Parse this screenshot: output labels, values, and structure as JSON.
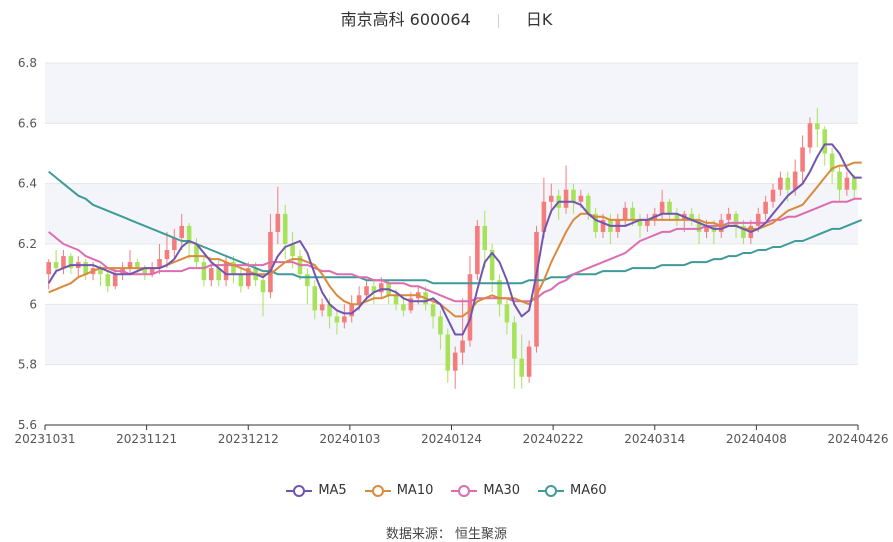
{
  "header": {
    "title": "南京高科 600064",
    "period": "日K"
  },
  "source": "数据来源： 恒生聚源",
  "colors": {
    "up": "#f47c7c",
    "down": "#a6e35b",
    "ma5": "#7155b0",
    "ma10": "#d98a3d",
    "ma30": "#dd6cb0",
    "ma60": "#3f9a9a",
    "grid": "#e6e6e6",
    "band": "#f4f5fa"
  },
  "chart_data": {
    "type": "candlestick",
    "title": "南京高科 600064 日K",
    "ylim": [
      5.6,
      6.8
    ],
    "yticks": [
      "6.8",
      "6.6",
      "6.4",
      "6.2",
      "6",
      "5.8",
      "5.6"
    ],
    "xticks": [
      "20231031",
      "20231121",
      "20231212",
      "20240103",
      "20240124",
      "20240222",
      "20240314",
      "20240408",
      "20240426"
    ],
    "legend": [
      {
        "name": "MA5",
        "color": "#7155b0"
      },
      {
        "name": "MA10",
        "color": "#d98a3d"
      },
      {
        "name": "MA30",
        "color": "#dd6cb0"
      },
      {
        "name": "MA60",
        "color": "#3f9a9a"
      }
    ],
    "candles": [
      [
        6.1,
        6.14,
        6.05,
        6.15
      ],
      [
        6.14,
        6.12,
        6.1,
        6.18
      ],
      [
        6.12,
        6.16,
        6.1,
        6.18
      ],
      [
        6.16,
        6.12,
        6.1,
        6.17
      ],
      [
        6.12,
        6.14,
        6.09,
        6.16
      ],
      [
        6.14,
        6.1,
        6.08,
        6.15
      ],
      [
        6.1,
        6.12,
        6.08,
        6.14
      ],
      [
        6.12,
        6.1,
        6.06,
        6.13
      ],
      [
        6.1,
        6.06,
        6.04,
        6.11
      ],
      [
        6.06,
        6.1,
        6.05,
        6.12
      ],
      [
        6.1,
        6.12,
        6.08,
        6.14
      ],
      [
        6.12,
        6.14,
        6.1,
        6.18
      ],
      [
        6.14,
        6.12,
        6.1,
        6.15
      ],
      [
        6.12,
        6.1,
        6.08,
        6.13
      ],
      [
        6.1,
        6.12,
        6.09,
        6.14
      ],
      [
        6.12,
        6.15,
        6.1,
        6.2
      ],
      [
        6.15,
        6.18,
        6.12,
        6.24
      ],
      [
        6.18,
        6.22,
        6.15,
        6.25
      ],
      [
        6.22,
        6.26,
        6.18,
        6.3
      ],
      [
        6.26,
        6.2,
        6.15,
        6.27
      ],
      [
        6.2,
        6.14,
        6.12,
        6.22
      ],
      [
        6.14,
        6.08,
        6.06,
        6.16
      ],
      [
        6.08,
        6.12,
        6.06,
        6.14
      ],
      [
        6.12,
        6.08,
        6.06,
        6.15
      ],
      [
        6.08,
        6.14,
        6.06,
        6.16
      ],
      [
        6.14,
        6.1,
        6.07,
        6.16
      ],
      [
        6.1,
        6.06,
        6.04,
        6.12
      ],
      [
        6.06,
        6.12,
        6.05,
        6.14
      ],
      [
        6.12,
        6.08,
        6.06,
        6.14
      ],
      [
        6.08,
        6.04,
        5.96,
        6.1
      ],
      [
        6.04,
        6.24,
        6.02,
        6.3
      ],
      [
        6.24,
        6.3,
        6.2,
        6.39
      ],
      [
        6.3,
        6.2,
        6.15,
        6.33
      ],
      [
        6.2,
        6.16,
        6.12,
        6.24
      ],
      [
        6.16,
        6.1,
        6.08,
        6.18
      ],
      [
        6.1,
        6.06,
        6.0,
        6.12
      ],
      [
        6.06,
        5.98,
        5.95,
        6.08
      ],
      [
        5.98,
        6.0,
        5.96,
        6.02
      ],
      [
        6.0,
        5.96,
        5.92,
        6.02
      ],
      [
        5.96,
        5.94,
        5.9,
        5.98
      ],
      [
        5.94,
        5.96,
        5.92,
        6.0
      ],
      [
        5.96,
        6.0,
        5.94,
        6.03
      ],
      [
        6.0,
        6.03,
        5.98,
        6.06
      ],
      [
        6.03,
        6.06,
        6.01,
        6.08
      ],
      [
        6.06,
        6.04,
        6.0,
        6.08
      ],
      [
        6.04,
        6.07,
        6.02,
        6.09
      ],
      [
        6.07,
        6.03,
        6.0,
        6.08
      ],
      [
        6.03,
        6.0,
        5.98,
        6.05
      ],
      [
        6.0,
        5.98,
        5.96,
        6.02
      ],
      [
        5.98,
        6.02,
        5.97,
        6.04
      ],
      [
        6.02,
        6.04,
        6.0,
        6.06
      ],
      [
        6.04,
        6.0,
        5.98,
        6.06
      ],
      [
        6.0,
        5.96,
        5.92,
        6.02
      ],
      [
        5.96,
        5.9,
        5.85,
        5.98
      ],
      [
        5.9,
        5.78,
        5.74,
        5.92
      ],
      [
        5.78,
        5.84,
        5.72,
        5.86
      ],
      [
        5.84,
        5.88,
        5.8,
        6.02
      ],
      [
        5.88,
        6.1,
        5.86,
        6.16
      ],
      [
        6.1,
        6.26,
        6.08,
        6.28
      ],
      [
        6.26,
        6.18,
        6.12,
        6.31
      ],
      [
        6.18,
        6.08,
        6.04,
        6.2
      ],
      [
        6.08,
        6.0,
        5.96,
        6.1
      ],
      [
        6.0,
        5.94,
        5.9,
        6.02
      ],
      [
        5.94,
        5.82,
        5.72,
        5.96
      ],
      [
        5.82,
        5.76,
        5.72,
        5.9
      ],
      [
        5.76,
        5.86,
        5.74,
        5.88
      ],
      [
        5.86,
        6.24,
        5.84,
        6.26
      ],
      [
        6.24,
        6.34,
        6.22,
        6.42
      ],
      [
        6.34,
        6.36,
        6.3,
        6.4
      ],
      [
        6.36,
        6.32,
        6.28,
        6.38
      ],
      [
        6.32,
        6.38,
        6.3,
        6.46
      ],
      [
        6.38,
        6.34,
        6.3,
        6.4
      ],
      [
        6.34,
        6.36,
        6.32,
        6.38
      ],
      [
        6.36,
        6.3,
        6.28,
        6.37
      ],
      [
        6.3,
        6.24,
        6.22,
        6.32
      ],
      [
        6.24,
        6.28,
        6.22,
        6.3
      ],
      [
        6.28,
        6.24,
        6.2,
        6.3
      ],
      [
        6.24,
        6.28,
        6.22,
        6.3
      ],
      [
        6.28,
        6.32,
        6.26,
        6.34
      ],
      [
        6.32,
        6.28,
        6.26,
        6.34
      ],
      [
        6.28,
        6.26,
        6.22,
        6.3
      ],
      [
        6.26,
        6.28,
        6.24,
        6.3
      ],
      [
        6.28,
        6.3,
        6.26,
        6.32
      ],
      [
        6.3,
        6.34,
        6.28,
        6.38
      ],
      [
        6.34,
        6.3,
        6.28,
        6.35
      ],
      [
        6.3,
        6.28,
        6.26,
        6.32
      ],
      [
        6.28,
        6.3,
        6.24,
        6.31
      ],
      [
        6.3,
        6.28,
        6.26,
        6.32
      ],
      [
        6.28,
        6.24,
        6.2,
        6.3
      ],
      [
        6.24,
        6.26,
        6.22,
        6.28
      ],
      [
        6.26,
        6.24,
        6.2,
        6.28
      ],
      [
        6.24,
        6.28,
        6.22,
        6.3
      ],
      [
        6.28,
        6.3,
        6.26,
        6.32
      ],
      [
        6.3,
        6.26,
        6.22,
        6.31
      ],
      [
        6.26,
        6.22,
        6.2,
        6.28
      ],
      [
        6.22,
        6.26,
        6.2,
        6.28
      ],
      [
        6.26,
        6.3,
        6.24,
        6.32
      ],
      [
        6.3,
        6.34,
        6.28,
        6.36
      ],
      [
        6.34,
        6.38,
        6.32,
        6.4
      ],
      [
        6.38,
        6.42,
        6.36,
        6.44
      ],
      [
        6.42,
        6.38,
        6.34,
        6.44
      ],
      [
        6.38,
        6.44,
        6.36,
        6.48
      ],
      [
        6.44,
        6.52,
        6.4,
        6.56
      ],
      [
        6.52,
        6.6,
        6.5,
        6.62
      ],
      [
        6.6,
        6.58,
        6.52,
        6.65
      ],
      [
        6.58,
        6.5,
        6.46,
        6.59
      ],
      [
        6.5,
        6.44,
        6.4,
        6.52
      ],
      [
        6.44,
        6.38,
        6.34,
        6.46
      ],
      [
        6.38,
        6.42,
        6.36,
        6.44
      ],
      [
        6.42,
        6.38,
        6.35,
        6.43
      ]
    ],
    "ma5": [
      6.07,
      6.11,
      6.12,
      6.13,
      6.13,
      6.13,
      6.13,
      6.12,
      6.11,
      6.1,
      6.1,
      6.1,
      6.11,
      6.12,
      6.12,
      6.12,
      6.13,
      6.15,
      6.19,
      6.21,
      6.2,
      6.17,
      6.14,
      6.12,
      6.1,
      6.1,
      6.1,
      6.1,
      6.1,
      6.09,
      6.11,
      6.16,
      6.19,
      6.2,
      6.21,
      6.17,
      6.1,
      6.04,
      6.0,
      5.98,
      5.97,
      5.97,
      5.99,
      6.02,
      6.04,
      6.05,
      6.05,
      6.04,
      6.02,
      6.01,
      6.01,
      6.01,
      6.02,
      6.0,
      5.95,
      5.9,
      5.9,
      5.95,
      6.05,
      6.14,
      6.17,
      6.14,
      6.08,
      6.0,
      5.96,
      5.98,
      6.1,
      6.24,
      6.31,
      6.34,
      6.34,
      6.34,
      6.33,
      6.3,
      6.28,
      6.27,
      6.26,
      6.26,
      6.26,
      6.27,
      6.28,
      6.28,
      6.29,
      6.3,
      6.3,
      6.3,
      6.29,
      6.28,
      6.27,
      6.26,
      6.25,
      6.25,
      6.26,
      6.26,
      6.25,
      6.24,
      6.25,
      6.27,
      6.3,
      6.33,
      6.36,
      6.38,
      6.4,
      6.44,
      6.49,
      6.53,
      6.53,
      6.5,
      6.45,
      6.42,
      6.42
    ],
    "ma10": [
      6.04,
      6.05,
      6.06,
      6.07,
      6.09,
      6.1,
      6.11,
      6.12,
      6.12,
      6.12,
      6.12,
      6.12,
      6.12,
      6.12,
      6.12,
      6.12,
      6.13,
      6.14,
      6.15,
      6.16,
      6.16,
      6.16,
      6.15,
      6.15,
      6.14,
      6.13,
      6.12,
      6.11,
      6.1,
      6.1,
      6.1,
      6.12,
      6.14,
      6.15,
      6.15,
      6.14,
      6.13,
      6.1,
      6.06,
      6.03,
      6.01,
      6.0,
      6.0,
      6.01,
      6.02,
      6.02,
      6.03,
      6.03,
      6.03,
      6.03,
      6.03,
      6.02,
      6.01,
      6.0,
      5.98,
      5.96,
      5.96,
      5.98,
      6.01,
      6.02,
      6.03,
      6.02,
      6.02,
      6.02,
      6.01,
      6.0,
      6.03,
      6.08,
      6.14,
      6.19,
      6.24,
      6.28,
      6.3,
      6.3,
      6.29,
      6.29,
      6.28,
      6.28,
      6.28,
      6.28,
      6.28,
      6.28,
      6.28,
      6.28,
      6.28,
      6.28,
      6.28,
      6.28,
      6.28,
      6.27,
      6.27,
      6.26,
      6.26,
      6.26,
      6.25,
      6.25,
      6.25,
      6.26,
      6.27,
      6.29,
      6.31,
      6.32,
      6.33,
      6.36,
      6.39,
      6.42,
      6.45,
      6.46,
      6.46,
      6.47,
      6.47
    ],
    "ma30": [
      6.24,
      6.22,
      6.2,
      6.19,
      6.18,
      6.16,
      6.15,
      6.14,
      6.12,
      6.11,
      6.11,
      6.1,
      6.1,
      6.1,
      6.1,
      6.11,
      6.11,
      6.11,
      6.11,
      6.12,
      6.12,
      6.12,
      6.13,
      6.13,
      6.13,
      6.13,
      6.13,
      6.13,
      6.13,
      6.13,
      6.14,
      6.14,
      6.14,
      6.14,
      6.13,
      6.13,
      6.12,
      6.11,
      6.11,
      6.1,
      6.1,
      6.1,
      6.09,
      6.09,
      6.08,
      6.08,
      6.07,
      6.07,
      6.07,
      6.06,
      6.06,
      6.05,
      6.04,
      6.03,
      6.02,
      6.01,
      6.01,
      6.01,
      6.02,
      6.02,
      6.02,
      6.02,
      6.02,
      6.01,
      6.01,
      6.01,
      6.02,
      6.04,
      6.05,
      6.07,
      6.08,
      6.1,
      6.11,
      6.12,
      6.13,
      6.14,
      6.15,
      6.16,
      6.17,
      6.19,
      6.21,
      6.22,
      6.23,
      6.24,
      6.24,
      6.25,
      6.25,
      6.25,
      6.25,
      6.26,
      6.26,
      6.26,
      6.27,
      6.27,
      6.27,
      6.27,
      6.27,
      6.27,
      6.28,
      6.28,
      6.29,
      6.29,
      6.3,
      6.31,
      6.32,
      6.33,
      6.34,
      6.34,
      6.34,
      6.35,
      6.35
    ],
    "ma60": [
      6.44,
      6.42,
      6.4,
      6.38,
      6.36,
      6.35,
      6.33,
      6.32,
      6.31,
      6.3,
      6.29,
      6.28,
      6.27,
      6.26,
      6.25,
      6.24,
      6.23,
      6.22,
      6.21,
      6.21,
      6.2,
      6.19,
      6.18,
      6.17,
      6.16,
      6.15,
      6.14,
      6.13,
      6.12,
      6.11,
      6.11,
      6.1,
      6.1,
      6.1,
      6.09,
      6.09,
      6.09,
      6.09,
      6.09,
      6.09,
      6.09,
      6.09,
      6.09,
      6.08,
      6.08,
      6.08,
      6.08,
      6.08,
      6.08,
      6.08,
      6.08,
      6.08,
      6.07,
      6.07,
      6.07,
      6.07,
      6.07,
      6.07,
      6.07,
      6.07,
      6.07,
      6.07,
      6.07,
      6.07,
      6.07,
      6.08,
      6.08,
      6.08,
      6.09,
      6.09,
      6.09,
      6.1,
      6.1,
      6.1,
      6.1,
      6.11,
      6.11,
      6.11,
      6.11,
      6.12,
      6.12,
      6.12,
      6.12,
      6.13,
      6.13,
      6.13,
      6.13,
      6.14,
      6.14,
      6.14,
      6.15,
      6.15,
      6.16,
      6.16,
      6.17,
      6.17,
      6.18,
      6.18,
      6.19,
      6.19,
      6.2,
      6.21,
      6.21,
      6.22,
      6.23,
      6.24,
      6.25,
      6.25,
      6.26,
      6.27,
      6.28
    ]
  },
  "legend": {
    "ma5": "MA5",
    "ma10": "MA10",
    "ma30": "MA30",
    "ma60": "MA60"
  }
}
